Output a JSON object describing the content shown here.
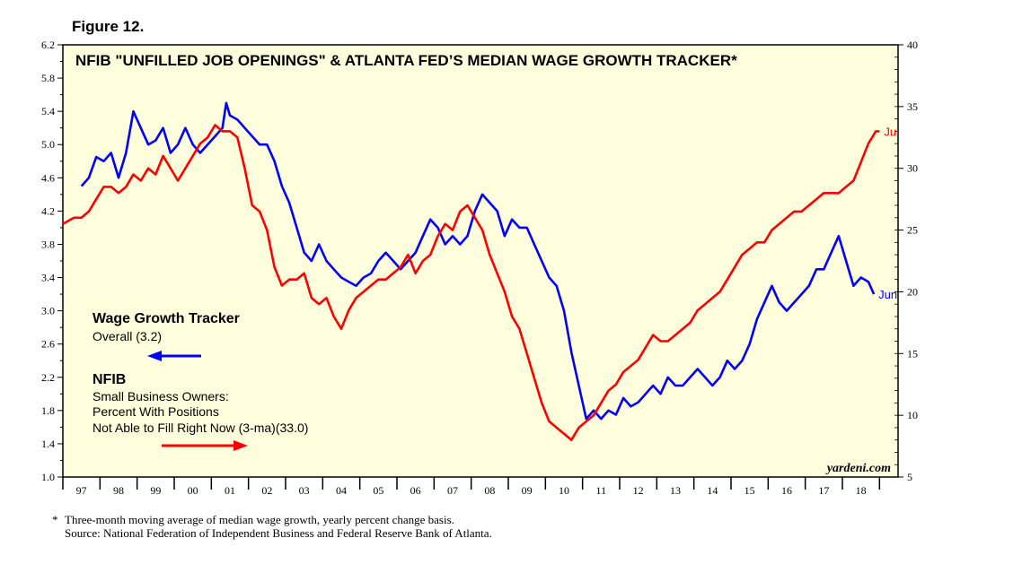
{
  "figure_label": "Figure 12.",
  "watermark": "yardeni.com",
  "footnote": {
    "marker": "*",
    "text": "Three-month moving average of median wage growth, yearly percent change basis.",
    "source": "Source: National Federation of Independent Business and Federal Reserve Bank of Atlanta."
  },
  "legend": {
    "wage": {
      "title": "Wage Growth Tracker",
      "subtitle": "Overall (3.2)",
      "arrow_direction": "left",
      "color": "#0000ff"
    },
    "nfib": {
      "title": "NFIB",
      "line1": "Small Business Owners:",
      "line2": "Percent With Positions",
      "line3": "Not Able to Fill Right Now (3-ma)(33.0)",
      "arrow_direction": "right",
      "color": "#ff0000"
    }
  },
  "chart_data": {
    "type": "line",
    "title": "NFIB \"UNFILLED JOB OPENINGS\" & ATLANTA FED’S MEDIAN WAGE GROWTH TRACKER*",
    "background": "#ffffdd",
    "x_range": [
      1996.5,
      2019.0
    ],
    "x_tick_labels": [
      "97",
      "98",
      "99",
      "00",
      "01",
      "02",
      "03",
      "04",
      "05",
      "06",
      "07",
      "08",
      "09",
      "10",
      "11",
      "12",
      "13",
      "14",
      "15",
      "16",
      "17",
      "18"
    ],
    "y_left": {
      "range": [
        1.0,
        6.2
      ],
      "ticks": [
        "1.0",
        "1.4",
        "1.8",
        "2.2",
        "2.6",
        "3.0",
        "3.4",
        "3.8",
        "4.2",
        "4.6",
        "5.0",
        "5.4",
        "5.8",
        "6.2"
      ]
    },
    "y_right": {
      "range": [
        5,
        40
      ],
      "ticks": [
        "5",
        "10",
        "15",
        "20",
        "25",
        "30",
        "35",
        "40"
      ]
    },
    "series": [
      {
        "name": "Wage Growth Tracker",
        "axis": "left",
        "color": "#0000ff",
        "end_label": "Jun",
        "points": [
          [
            1997.0,
            4.5
          ],
          [
            1997.2,
            4.6
          ],
          [
            1997.4,
            4.85
          ],
          [
            1997.6,
            4.8
          ],
          [
            1997.8,
            4.9
          ],
          [
            1998.0,
            4.6
          ],
          [
            1998.2,
            4.9
          ],
          [
            1998.4,
            5.4
          ],
          [
            1998.6,
            5.2
          ],
          [
            1998.8,
            5.0
          ],
          [
            1999.0,
            5.05
          ],
          [
            1999.2,
            5.2
          ],
          [
            1999.4,
            4.9
          ],
          [
            1999.6,
            5.0
          ],
          [
            1999.8,
            5.2
          ],
          [
            2000.0,
            5.0
          ],
          [
            2000.2,
            4.9
          ],
          [
            2000.4,
            5.0
          ],
          [
            2000.6,
            5.1
          ],
          [
            2000.8,
            5.2
          ],
          [
            2000.9,
            5.5
          ],
          [
            2001.0,
            5.35
          ],
          [
            2001.2,
            5.3
          ],
          [
            2001.4,
            5.2
          ],
          [
            2001.6,
            5.1
          ],
          [
            2001.8,
            5.0
          ],
          [
            2002.0,
            5.0
          ],
          [
            2002.2,
            4.8
          ],
          [
            2002.4,
            4.5
          ],
          [
            2002.6,
            4.3
          ],
          [
            2002.8,
            4.0
          ],
          [
            2003.0,
            3.7
          ],
          [
            2003.2,
            3.6
          ],
          [
            2003.4,
            3.8
          ],
          [
            2003.6,
            3.6
          ],
          [
            2003.8,
            3.5
          ],
          [
            2004.0,
            3.4
          ],
          [
            2004.2,
            3.35
          ],
          [
            2004.4,
            3.3
          ],
          [
            2004.6,
            3.4
          ],
          [
            2004.8,
            3.45
          ],
          [
            2005.0,
            3.6
          ],
          [
            2005.2,
            3.7
          ],
          [
            2005.4,
            3.6
          ],
          [
            2005.6,
            3.5
          ],
          [
            2005.8,
            3.6
          ],
          [
            2006.0,
            3.7
          ],
          [
            2006.2,
            3.9
          ],
          [
            2006.4,
            4.1
          ],
          [
            2006.6,
            4.0
          ],
          [
            2006.8,
            3.8
          ],
          [
            2007.0,
            3.9
          ],
          [
            2007.2,
            3.8
          ],
          [
            2007.4,
            3.9
          ],
          [
            2007.6,
            4.2
          ],
          [
            2007.8,
            4.4
          ],
          [
            2008.0,
            4.3
          ],
          [
            2008.2,
            4.2
          ],
          [
            2008.4,
            3.9
          ],
          [
            2008.6,
            4.1
          ],
          [
            2008.8,
            4.0
          ],
          [
            2009.0,
            4.0
          ],
          [
            2009.2,
            3.8
          ],
          [
            2009.4,
            3.6
          ],
          [
            2009.6,
            3.4
          ],
          [
            2009.8,
            3.3
          ],
          [
            2010.0,
            3.0
          ],
          [
            2010.2,
            2.5
          ],
          [
            2010.4,
            2.1
          ],
          [
            2010.6,
            1.7
          ],
          [
            2010.8,
            1.8
          ],
          [
            2011.0,
            1.7
          ],
          [
            2011.2,
            1.8
          ],
          [
            2011.4,
            1.75
          ],
          [
            2011.6,
            1.95
          ],
          [
            2011.8,
            1.85
          ],
          [
            2012.0,
            1.9
          ],
          [
            2012.2,
            2.0
          ],
          [
            2012.4,
            2.1
          ],
          [
            2012.6,
            2.0
          ],
          [
            2012.8,
            2.2
          ],
          [
            2013.0,
            2.1
          ],
          [
            2013.2,
            2.1
          ],
          [
            2013.4,
            2.2
          ],
          [
            2013.6,
            2.3
          ],
          [
            2013.8,
            2.2
          ],
          [
            2014.0,
            2.1
          ],
          [
            2014.2,
            2.2
          ],
          [
            2014.4,
            2.4
          ],
          [
            2014.6,
            2.3
          ],
          [
            2014.8,
            2.4
          ],
          [
            2015.0,
            2.6
          ],
          [
            2015.2,
            2.9
          ],
          [
            2015.4,
            3.1
          ],
          [
            2015.6,
            3.3
          ],
          [
            2015.8,
            3.1
          ],
          [
            2016.0,
            3.0
          ],
          [
            2016.2,
            3.1
          ],
          [
            2016.4,
            3.2
          ],
          [
            2016.6,
            3.3
          ],
          [
            2016.8,
            3.5
          ],
          [
            2017.0,
            3.5
          ],
          [
            2017.2,
            3.7
          ],
          [
            2017.4,
            3.9
          ],
          [
            2017.6,
            3.6
          ],
          [
            2017.8,
            3.3
          ],
          [
            2018.0,
            3.4
          ],
          [
            2018.2,
            3.35
          ],
          [
            2018.35,
            3.2
          ]
        ]
      },
      {
        "name": "NFIB",
        "axis": "right",
        "color": "#ff0000",
        "end_label": "Jul",
        "points": [
          [
            1996.5,
            25.5
          ],
          [
            1996.8,
            26
          ],
          [
            1997.0,
            26
          ],
          [
            1997.2,
            26.5
          ],
          [
            1997.4,
            27.5
          ],
          [
            1997.6,
            28.5
          ],
          [
            1997.8,
            28.5
          ],
          [
            1998.0,
            28
          ],
          [
            1998.2,
            28.5
          ],
          [
            1998.4,
            29.5
          ],
          [
            1998.6,
            29
          ],
          [
            1998.8,
            30
          ],
          [
            1999.0,
            29.5
          ],
          [
            1999.2,
            31
          ],
          [
            1999.4,
            30
          ],
          [
            1999.6,
            29
          ],
          [
            1999.8,
            30
          ],
          [
            2000.0,
            31
          ],
          [
            2000.2,
            32
          ],
          [
            2000.4,
            32.5
          ],
          [
            2000.6,
            33.5
          ],
          [
            2000.8,
            33
          ],
          [
            2001.0,
            33
          ],
          [
            2001.2,
            32.5
          ],
          [
            2001.4,
            30
          ],
          [
            2001.6,
            27
          ],
          [
            2001.8,
            26.5
          ],
          [
            2002.0,
            25
          ],
          [
            2002.2,
            22
          ],
          [
            2002.4,
            20.5
          ],
          [
            2002.6,
            21
          ],
          [
            2002.8,
            21
          ],
          [
            2003.0,
            21.5
          ],
          [
            2003.2,
            19.5
          ],
          [
            2003.4,
            19
          ],
          [
            2003.6,
            19.5
          ],
          [
            2003.8,
            18
          ],
          [
            2004.0,
            17
          ],
          [
            2004.2,
            18.5
          ],
          [
            2004.4,
            19.5
          ],
          [
            2004.6,
            20
          ],
          [
            2004.8,
            20.5
          ],
          [
            2005.0,
            21
          ],
          [
            2005.2,
            21
          ],
          [
            2005.4,
            21.5
          ],
          [
            2005.6,
            22
          ],
          [
            2005.8,
            23
          ],
          [
            2006.0,
            21.5
          ],
          [
            2006.2,
            22.5
          ],
          [
            2006.4,
            23
          ],
          [
            2006.6,
            24.5
          ],
          [
            2006.8,
            25.5
          ],
          [
            2007.0,
            25
          ],
          [
            2007.2,
            26.5
          ],
          [
            2007.4,
            27
          ],
          [
            2007.6,
            26
          ],
          [
            2007.8,
            25
          ],
          [
            2008.0,
            23
          ],
          [
            2008.2,
            21.5
          ],
          [
            2008.4,
            20
          ],
          [
            2008.6,
            18
          ],
          [
            2008.8,
            17
          ],
          [
            2009.0,
            15
          ],
          [
            2009.2,
            13
          ],
          [
            2009.4,
            11
          ],
          [
            2009.6,
            9.5
          ],
          [
            2009.8,
            9
          ],
          [
            2010.0,
            8.5
          ],
          [
            2010.2,
            8
          ],
          [
            2010.4,
            9
          ],
          [
            2010.6,
            9.5
          ],
          [
            2010.8,
            10
          ],
          [
            2011.0,
            11
          ],
          [
            2011.2,
            12
          ],
          [
            2011.4,
            12.5
          ],
          [
            2011.6,
            13.5
          ],
          [
            2011.8,
            14
          ],
          [
            2012.0,
            14.5
          ],
          [
            2012.2,
            15.5
          ],
          [
            2012.4,
            16.5
          ],
          [
            2012.6,
            16
          ],
          [
            2012.8,
            16
          ],
          [
            2013.0,
            16.5
          ],
          [
            2013.2,
            17
          ],
          [
            2013.4,
            17.5
          ],
          [
            2013.6,
            18.5
          ],
          [
            2013.8,
            19
          ],
          [
            2014.0,
            19.5
          ],
          [
            2014.2,
            20
          ],
          [
            2014.4,
            21
          ],
          [
            2014.6,
            22
          ],
          [
            2014.8,
            23
          ],
          [
            2015.0,
            23.5
          ],
          [
            2015.2,
            24
          ],
          [
            2015.4,
            24
          ],
          [
            2015.6,
            25
          ],
          [
            2015.8,
            25.5
          ],
          [
            2016.0,
            26
          ],
          [
            2016.2,
            26.5
          ],
          [
            2016.4,
            26.5
          ],
          [
            2016.6,
            27
          ],
          [
            2016.8,
            27.5
          ],
          [
            2017.0,
            28
          ],
          [
            2017.2,
            28
          ],
          [
            2017.4,
            28
          ],
          [
            2017.6,
            28.5
          ],
          [
            2017.8,
            29
          ],
          [
            2018.0,
            30.5
          ],
          [
            2018.2,
            32
          ],
          [
            2018.4,
            33
          ],
          [
            2018.5,
            33
          ]
        ]
      }
    ]
  }
}
